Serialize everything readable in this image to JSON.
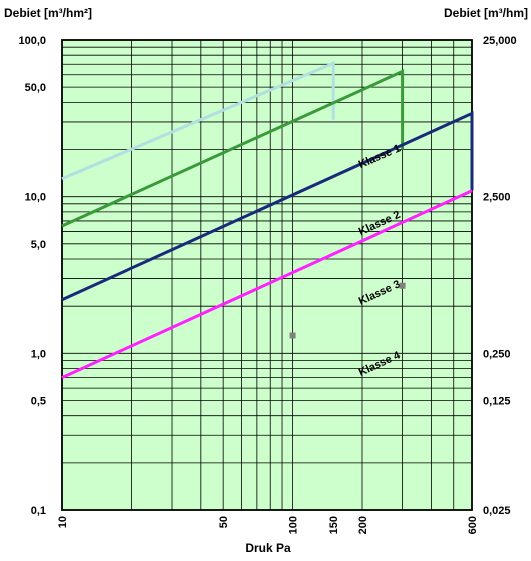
{
  "chart_data": {
    "type": "line",
    "title": "",
    "ylabel_left": "Debiet [m³/hm²]",
    "ylabel_right": "Debiet [m³/hm]",
    "xlabel": "Druk  Pa",
    "x_scale": "log",
    "y_scale": "log",
    "xlim": [
      10,
      600
    ],
    "ylim": [
      0.1,
      100
    ],
    "x_ticks": [
      {
        "value": 10,
        "label": "10"
      },
      {
        "value": 50,
        "label": "50"
      },
      {
        "value": 100,
        "label": "100"
      },
      {
        "value": 150,
        "label": "150"
      },
      {
        "value": 200,
        "label": "200"
      },
      {
        "value": 600,
        "label": "600"
      }
    ],
    "y_ticks_left": [
      {
        "value": 100,
        "label": "100,0"
      },
      {
        "value": 50,
        "label": "50,0"
      },
      {
        "value": 10,
        "label": "10,0"
      },
      {
        "value": 5,
        "label": "5,0"
      },
      {
        "value": 1,
        "label": "1,0"
      },
      {
        "value": 0.5,
        "label": "0,5"
      },
      {
        "value": 0.1,
        "label": "0,1"
      }
    ],
    "y_ticks_right": [
      {
        "value": 100,
        "label": "25,000"
      },
      {
        "value": 10,
        "label": "2,500"
      },
      {
        "value": 1,
        "label": "0,250"
      },
      {
        "value": 0.5,
        "label": "0,125"
      },
      {
        "value": 0.1,
        "label": "0,025"
      }
    ],
    "grid": true,
    "colors": {
      "plot_background": "#ccffcc",
      "grid": "#000000",
      "marker": "#808080"
    },
    "series": [
      {
        "name": "Klasse 1",
        "color": "#b0e0e0",
        "points": [
          [
            10,
            13
          ],
          [
            150,
            71
          ],
          [
            150,
            31
          ]
        ]
      },
      {
        "name": "Klasse 2",
        "color": "#3a9a3a",
        "points": [
          [
            10,
            6.5
          ],
          [
            300,
            63
          ],
          [
            300,
            20
          ]
        ]
      },
      {
        "name": "Klasse 3",
        "color": "#1a2a7a",
        "points": [
          [
            10,
            2.2
          ],
          [
            600,
            34
          ],
          [
            600,
            11
          ]
        ]
      },
      {
        "name": "Klasse 4",
        "color": "#ff22ff",
        "points": [
          [
            10,
            0.7
          ],
          [
            600,
            10.9
          ]
        ]
      }
    ],
    "labels": [
      {
        "text": "Klasse 1",
        "x": 40,
        "y": 20
      },
      {
        "text": "Klasse 2",
        "x": 40,
        "y": 7.5
      },
      {
        "text": "Klasse 3",
        "x": 40,
        "y": 2.7
      },
      {
        "text": "Klasse 4",
        "x": 40,
        "y": 0.95
      }
    ],
    "markers": [
      {
        "x": 100,
        "y": 1.3
      },
      {
        "x": 300,
        "y": 2.7
      }
    ]
  }
}
